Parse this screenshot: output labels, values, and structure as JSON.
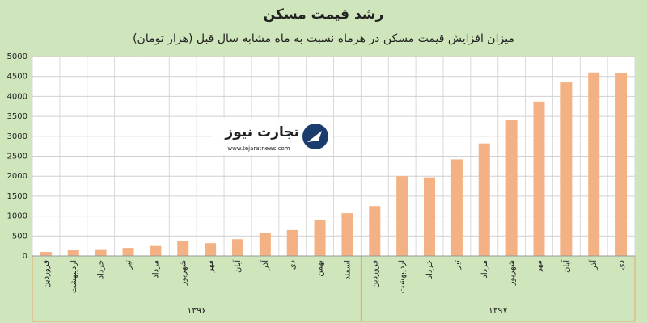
{
  "chart_data": {
    "type": "bar",
    "title": "رشد قیمت مسکن",
    "subtitle": "میزان افزایش قیمت مسکن در هرماه نسبت به ماه مشابه سال قبل (هزار تومان)",
    "watermark": "تجارت نیوز",
    "watermark_url": "www.tejaratnews.com",
    "color": "#f4b183",
    "groups": [
      {
        "label": "۱۳۹۶",
        "categories": [
          "فروردین",
          "اردیبهشت",
          "خرداد",
          "تیر",
          "مرداد",
          "شهریور",
          "مهر",
          "آبان",
          "آذر",
          "دی",
          "بهمن",
          "اسفند"
        ],
        "values": [
          100,
          150,
          170,
          200,
          250,
          380,
          320,
          420,
          580,
          650,
          900,
          1070
        ]
      },
      {
        "label": "۱۳۹۷",
        "categories": [
          "فروردین",
          "اردیبهشت",
          "خرداد",
          "تیر",
          "مرداد",
          "شهریور",
          "مهر",
          "آبان",
          "آذر",
          "دی"
        ],
        "values": [
          1250,
          2000,
          1970,
          2420,
          2820,
          3400,
          3870,
          4350,
          4600,
          4580
        ]
      }
    ],
    "ylim": [
      0,
      5000
    ],
    "yticks": [
      0,
      500,
      1000,
      1500,
      2000,
      2500,
      3000,
      3500,
      4000,
      4500,
      5000
    ],
    "grid": true
  }
}
